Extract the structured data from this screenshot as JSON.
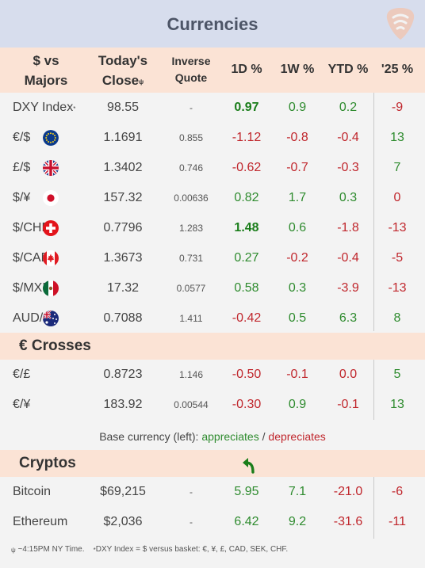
{
  "header": {
    "title": "Currencies",
    "logo_icon": "guitar-pick-logo-icon"
  },
  "columns": {
    "majors_line1": "$ vs",
    "majors_line2": "Majors",
    "close_line1": "Today's",
    "close_line2": "Close",
    "close_mark": "ψ",
    "inverse_line1": "Inverse",
    "inverse_line2": "Quote",
    "d1": "1D %",
    "w1": "1W %",
    "ytd": "YTD %",
    "y25": "'25 %"
  },
  "majors": [
    {
      "name": "DXY Index",
      "mark": "*",
      "flag": "",
      "close": "98.55",
      "inverse": "-",
      "d1": "0.97",
      "w1": "0.9",
      "ytd": "0.2",
      "y25": "-9"
    },
    {
      "name": "€/$",
      "mark": "",
      "flag": "eu-flag-icon",
      "close": "1.1691",
      "inverse": "0.855",
      "d1": "-1.12",
      "w1": "-0.8",
      "ytd": "-0.4",
      "y25": "13"
    },
    {
      "name": "£/$",
      "mark": "",
      "flag": "uk-flag-icon",
      "close": "1.3402",
      "inverse": "0.746",
      "d1": "-0.62",
      "w1": "-0.7",
      "ytd": "-0.3",
      "y25": "7"
    },
    {
      "name": "$/¥",
      "mark": "",
      "flag": "japan-flag-icon",
      "close": "157.32",
      "inverse": "0.00636",
      "d1": "0.82",
      "w1": "1.7",
      "ytd": "0.3",
      "y25": "0"
    },
    {
      "name": "$/CHF",
      "mark": "",
      "flag": "swiss-flag-icon",
      "close": "0.7796",
      "inverse": "1.283",
      "d1": "1.48",
      "w1": "0.6",
      "ytd": "-1.8",
      "y25": "-13"
    },
    {
      "name": "$/CAD",
      "mark": "",
      "flag": "canada-flag-icon",
      "close": "1.3673",
      "inverse": "0.731",
      "d1": "0.27",
      "w1": "-0.2",
      "ytd": "-0.4",
      "y25": "-5"
    },
    {
      "name": "$/MXN",
      "mark": "",
      "flag": "mexico-flag-icon",
      "close": "17.32",
      "inverse": "0.0577",
      "d1": "0.58",
      "w1": "0.3",
      "ytd": "-3.9",
      "y25": "-13"
    },
    {
      "name": "AUD/$",
      "mark": "",
      "flag": "australia-flag-icon",
      "close": "0.7088",
      "inverse": "1.411",
      "d1": "-0.42",
      "w1": "0.5",
      "ytd": "6.3",
      "y25": "8"
    }
  ],
  "crosses_title": "€ Crosses",
  "crosses": [
    {
      "name": "€/£",
      "close": "0.8723",
      "inverse": "1.146",
      "d1": "-0.50",
      "w1": "-0.1",
      "ytd": "0.0",
      "y25": "5"
    },
    {
      "name": "€/¥",
      "close": "183.92",
      "inverse": "0.00544",
      "d1": "-0.30",
      "w1": "0.9",
      "ytd": "-0.1",
      "y25": "13"
    }
  ],
  "legend": {
    "prefix": "Base currency (left):",
    "appreciates": "appreciates",
    "separator": "/",
    "depreciates": "depreciates"
  },
  "cryptos_title": "Cryptos",
  "cryptos": [
    {
      "name": "Bitcoin",
      "close": "$69,215",
      "inverse": "-",
      "d1": "5.95",
      "w1": "7.1",
      "ytd": "-21.0",
      "y25": "-6"
    },
    {
      "name": "Ethereum",
      "close": "$2,036",
      "inverse": "-",
      "d1": "6.42",
      "w1": "9.2",
      "ytd": "-31.6",
      "y25": "-11"
    }
  ],
  "icons": {
    "undo_arrow": "curved-arrow-icon"
  },
  "colors": {
    "positive": "#2e8b2e",
    "negative": "#c0262c",
    "header_bg": "#d7dded",
    "section_bg": "#fbe3d5"
  },
  "footnote": {
    "mark1": "ψ",
    "text1": " ~4:15PM NY Time.",
    "mark2": "*",
    "text2": "DXY Index = $ versus basket: €, ¥, £, CAD, SEK, CHF."
  }
}
